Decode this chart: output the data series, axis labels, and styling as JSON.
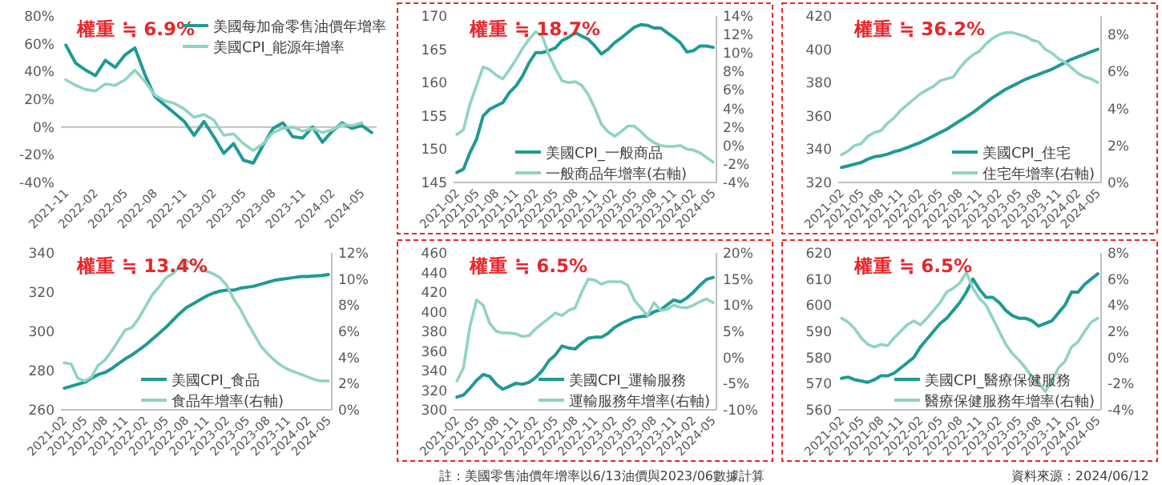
{
  "chart_data": [
    {
      "type": "line",
      "title": "權重 ≒ 6.9%",
      "legend": "top right",
      "categories": [
        "2021-11",
        null,
        null,
        "2022-02",
        null,
        null,
        "2022-05",
        null,
        null,
        "2022-08",
        null,
        null,
        "2022-11",
        null,
        null,
        "2023-02",
        null,
        null,
        "2023-05",
        null,
        null,
        "2023-08",
        null,
        null,
        "2023-11",
        null,
        null,
        "2024-02",
        null,
        null,
        "2024-05",
        null
      ],
      "ylim": [
        -40,
        80
      ],
      "yticks": [
        {
          "value": -40,
          "label": "-40%"
        },
        {
          "value": -20,
          "label": "-20%"
        },
        {
          "value": 0,
          "label": "0%"
        },
        {
          "value": 20,
          "label": "20%"
        },
        {
          "value": 40,
          "label": "40%"
        },
        {
          "value": 60,
          "label": "60%"
        },
        {
          "value": 80,
          "label": "80%"
        }
      ],
      "series": [
        {
          "name": "美國每加侖零售油價年增率",
          "color": "#1f9a93",
          "values": [
            59,
            46,
            41,
            37,
            48,
            43,
            52,
            57,
            38,
            22,
            16,
            10,
            4,
            -6,
            4,
            -7,
            -19,
            -12,
            -24,
            -26,
            -13,
            -1,
            3,
            -7,
            -8,
            0,
            -11,
            -3,
            3,
            -1,
            1,
            -4
          ]
        },
        {
          "name": "美國CPI_能源年增率",
          "color": "#8fd4c1",
          "values": [
            34,
            30,
            27,
            26,
            31,
            30,
            34,
            41,
            33,
            23,
            19,
            17,
            13,
            7,
            9,
            5,
            -6,
            -5,
            -12,
            -17,
            -12,
            -4,
            -1,
            0,
            -3,
            -1,
            -4,
            -2,
            2,
            1,
            3,
            null
          ]
        }
      ]
    },
    {
      "type": "line",
      "title": "權重 ≒ 18.7%",
      "legend": "bottom",
      "categories": [
        "2021-02",
        null,
        null,
        "2021-05",
        null,
        null,
        "2021-08",
        null,
        null,
        "2021-11",
        null,
        null,
        "2022-02",
        null,
        null,
        "2022-05",
        null,
        null,
        "2022-08",
        null,
        null,
        "2022-11",
        null,
        null,
        "2023-02",
        null,
        null,
        "2023-05",
        null,
        null,
        "2023-08",
        null,
        null,
        "2023-11",
        null,
        null,
        "2024-02",
        null,
        null,
        "2024-05"
      ],
      "ylim": [
        145,
        170
      ],
      "yticks": [
        145,
        150,
        155,
        160,
        165,
        170
      ],
      "y2lim": [
        -4,
        14
      ],
      "y2ticks": [
        {
          "value": -4,
          "label": "-4%"
        },
        {
          "value": -2,
          "label": "-2%"
        },
        {
          "value": 0,
          "label": "0%"
        },
        {
          "value": 2,
          "label": "2%"
        },
        {
          "value": 4,
          "label": "4%"
        },
        {
          "value": 6,
          "label": "6%"
        },
        {
          "value": 8,
          "label": "8%"
        },
        {
          "value": 10,
          "label": "10%"
        },
        {
          "value": 12,
          "label": "12%"
        },
        {
          "value": 14,
          "label": "14%"
        }
      ],
      "series": [
        {
          "name": "美國CPI_一般商品",
          "color": "#1f9a93",
          "values": [
            146.5,
            147,
            149.5,
            151.5,
            155,
            156,
            156.5,
            157,
            158.5,
            159.5,
            161,
            163,
            164.5,
            164.5,
            164.8,
            165.2,
            166.3,
            166.8,
            167.5,
            167,
            166.5,
            165.5,
            164.3,
            165,
            166,
            166.7,
            167.5,
            168.3,
            168.7,
            168.6,
            168.2,
            168.2,
            167.5,
            166.8,
            166,
            164.6,
            164.8,
            165.5,
            165.5,
            165.3
          ]
        },
        {
          "name": "一般商品年增率(右軸)",
          "color": "#8fd4c1",
          "axis": "y2",
          "values": [
            1.2,
            1.7,
            4.5,
            6.5,
            8.5,
            8.2,
            7.6,
            7.2,
            8.2,
            9.3,
            10.5,
            11.5,
            12.3,
            11.8,
            9.8,
            8.3,
            7,
            6.8,
            6.9,
            6.5,
            5.5,
            4,
            2.3,
            1.5,
            1,
            1.5,
            2.1,
            2.1,
            1.5,
            0.8,
            0.3,
            0,
            -0.1,
            -0.1,
            0,
            -0.4,
            -0.5,
            -0.8,
            -1.3,
            -1.8
          ]
        }
      ]
    },
    {
      "type": "line",
      "title": "權重 ≒ 36.2%",
      "legend": "bottom right",
      "categories": [
        "2021-02",
        null,
        null,
        "2021-05",
        null,
        null,
        "2021-08",
        null,
        null,
        "2021-11",
        null,
        null,
        "2022-02",
        null,
        null,
        "2022-05",
        null,
        null,
        "2022-08",
        null,
        null,
        "2022-11",
        null,
        null,
        "2023-02",
        null,
        null,
        "2023-05",
        null,
        null,
        "2023-08",
        null,
        null,
        "2023-11",
        null,
        null,
        "2024-02",
        null,
        null,
        "2024-05"
      ],
      "ylim": [
        320,
        420
      ],
      "yticks": [
        320,
        340,
        360,
        380,
        400,
        420
      ],
      "y2lim": [
        0,
        9
      ],
      "y2ticks": [
        {
          "value": 0,
          "label": "0%"
        },
        {
          "value": 2,
          "label": "2%"
        },
        {
          "value": 4,
          "label": "4%"
        },
        {
          "value": 6,
          "label": "6%"
        },
        {
          "value": 8,
          "label": "8%"
        }
      ],
      "series": [
        {
          "name": "美國CPI_住宅",
          "color": "#1f9a93",
          "values": [
            329,
            330,
            331,
            332,
            334,
            335.5,
            336,
            337,
            338.5,
            339.5,
            341,
            342.5,
            344,
            346,
            348,
            350,
            352,
            354.5,
            357,
            359.5,
            362,
            365,
            368,
            371,
            373.5,
            376,
            378,
            380,
            382,
            383.5,
            385,
            386.5,
            388,
            390,
            392,
            394,
            395.5,
            397,
            398.5,
            400
          ]
        },
        {
          "name": "住宅年增率(右軸)",
          "color": "#8fd4c1",
          "axis": "y2",
          "values": [
            1.5,
            1.7,
            2,
            2.1,
            2.5,
            2.7,
            2.8,
            3.2,
            3.5,
            3.9,
            4.2,
            4.5,
            4.8,
            5,
            5.2,
            5.5,
            5.6,
            5.7,
            6.2,
            6.6,
            6.9,
            7.1,
            7.5,
            7.8,
            8,
            8.1,
            8.1,
            8,
            7.9,
            7.7,
            7.6,
            7.2,
            7,
            6.7,
            6.5,
            6.2,
            5.9,
            5.7,
            5.6,
            5.4
          ]
        }
      ]
    },
    {
      "type": "line",
      "title": "權重 ≒ 13.4%",
      "legend": "bottom",
      "categories": [
        "2021-02",
        null,
        null,
        "2021-05",
        null,
        null,
        "2021-08",
        null,
        null,
        "2021-11",
        null,
        null,
        "2022-02",
        null,
        null,
        "2022-05",
        null,
        null,
        "2022-08",
        null,
        null,
        "2022-11",
        null,
        null,
        "2023-02",
        null,
        null,
        "2023-05",
        null,
        null,
        "2023-08",
        null,
        null,
        "2023-11",
        null,
        null,
        "2024-02",
        null,
        null,
        "2024-05"
      ],
      "ylim": [
        260,
        340
      ],
      "yticks": [
        260,
        280,
        300,
        320,
        340
      ],
      "y2lim": [
        0,
        12
      ],
      "y2ticks": [
        {
          "value": 0,
          "label": "0%"
        },
        {
          "value": 2,
          "label": "2%"
        },
        {
          "value": 4,
          "label": "4%"
        },
        {
          "value": 6,
          "label": "6%"
        },
        {
          "value": 8,
          "label": "8%"
        },
        {
          "value": 10,
          "label": "10%"
        },
        {
          "value": 12,
          "label": "12%"
        }
      ],
      "series": [
        {
          "name": "美國CPI_食品",
          "color": "#1f9a93",
          "values": [
            271,
            272,
            273,
            274,
            276,
            278,
            279,
            281,
            283.5,
            286,
            288,
            290.5,
            293,
            296,
            299,
            302,
            305.5,
            309,
            312,
            314,
            316,
            318,
            319.5,
            320.5,
            321,
            321,
            322,
            322.5,
            323,
            324,
            325,
            326,
            326.5,
            327,
            327.5,
            328,
            328,
            328.3,
            328.5,
            329
          ]
        },
        {
          "name": "食品年增率(右軸)",
          "color": "#8fd4c1",
          "axis": "y2",
          "values": [
            3.6,
            3.5,
            2.4,
            2.2,
            2.5,
            3.4,
            3.8,
            4.5,
            5.3,
            6.1,
            6.3,
            7,
            7.9,
            8.8,
            9.4,
            10.1,
            10.4,
            10.9,
            11.4,
            11.2,
            10.9,
            10.6,
            10.4,
            10.1,
            9.5,
            8.5,
            7.7,
            6.7,
            5.8,
            4.9,
            4.3,
            3.8,
            3.4,
            3.1,
            2.9,
            2.7,
            2.5,
            2.3,
            2.2,
            2.2
          ]
        }
      ]
    },
    {
      "type": "line",
      "title": "權重 ≒ 6.5%",
      "legend": "bottom right",
      "annotations": [
        "註：美國零售油價年增率以6/13油價與2023/06數據計算"
      ],
      "categories": [
        "2021-02",
        null,
        null,
        "2021-05",
        null,
        null,
        "2021-08",
        null,
        null,
        "2021-11",
        null,
        null,
        "2022-02",
        null,
        null,
        "2022-05",
        null,
        null,
        "2022-08",
        null,
        null,
        "2022-11",
        null,
        null,
        "2023-02",
        null,
        null,
        "2023-05",
        null,
        null,
        "2023-08",
        null,
        null,
        "2023-11",
        null,
        null,
        "2024-02",
        null,
        null,
        "2024-05"
      ],
      "ylim": [
        300,
        460
      ],
      "yticks": [
        300,
        320,
        340,
        360,
        380,
        400,
        420,
        440,
        460
      ],
      "y2lim": [
        -10,
        20
      ],
      "y2ticks": [
        {
          "value": -10,
          "label": "-10%"
        },
        {
          "value": -5,
          "label": "-5%"
        },
        {
          "value": 0,
          "label": "0%"
        },
        {
          "value": 5,
          "label": "5%"
        },
        {
          "value": 10,
          "label": "10%"
        },
        {
          "value": 15,
          "label": "15%"
        },
        {
          "value": 20,
          "label": "20%"
        }
      ],
      "series": [
        {
          "name": "美國CPI_運輸服務",
          "color": "#1f9a93",
          "values": [
            313,
            315,
            322,
            330,
            336,
            334,
            326,
            321,
            324,
            327,
            326,
            328,
            333,
            340,
            350,
            356,
            365,
            363,
            362,
            368,
            373,
            374,
            374,
            378,
            384,
            388,
            391,
            394,
            395,
            396,
            400,
            402,
            407,
            412,
            410,
            414,
            420,
            427,
            433,
            435
          ]
        },
        {
          "name": "運輸服務年增率(右軸)",
          "color": "#8fd4c1",
          "axis": "y2",
          "values": [
            -4.5,
            -2,
            6,
            11,
            10,
            6.5,
            5,
            4.7,
            4.7,
            4.5,
            4,
            4.2,
            5.5,
            6.5,
            7.5,
            8.5,
            8,
            9,
            9.5,
            12.5,
            15,
            14.8,
            14,
            14.5,
            14.5,
            14.5,
            13.8,
            11,
            9.5,
            8,
            10.5,
            9,
            9.2,
            10,
            9.6,
            9.5,
            10,
            10.7,
            11.2,
            10.5
          ]
        }
      ]
    },
    {
      "type": "line",
      "title": "權重 ≒ 6.5%",
      "legend": "bottom right",
      "annotations": [
        "資料來源：2024/06/12"
      ],
      "categories": [
        "2021-02",
        null,
        null,
        "2021-05",
        null,
        null,
        "2021-08",
        null,
        null,
        "2021-11",
        null,
        null,
        "2022-02",
        null,
        null,
        "2022-05",
        null,
        null,
        "2022-08",
        null,
        null,
        "2022-11",
        null,
        null,
        "2023-02",
        null,
        null,
        "2023-05",
        null,
        null,
        "2023-08",
        null,
        null,
        "2023-11",
        null,
        null,
        "2024-02",
        null,
        null,
        "2024-05"
      ],
      "ylim": [
        560,
        620
      ],
      "yticks": [
        560,
        570,
        580,
        590,
        600,
        610,
        620
      ],
      "y2lim": [
        -4,
        8
      ],
      "y2ticks": [
        {
          "value": -4,
          "label": "-4%"
        },
        {
          "value": -2,
          "label": "-2%"
        },
        {
          "value": 0,
          "label": "0%"
        },
        {
          "value": 2,
          "label": "2%"
        },
        {
          "value": 4,
          "label": "4%"
        },
        {
          "value": 6,
          "label": "6%"
        },
        {
          "value": 8,
          "label": "8%"
        }
      ],
      "series": [
        {
          "name": "美國CPI_醫療保健服務",
          "color": "#1f9a93",
          "values": [
            572,
            572.5,
            571.5,
            571,
            570.5,
            571.5,
            573,
            573,
            574,
            576,
            578,
            580,
            584,
            587,
            590,
            593,
            595,
            598,
            601,
            605,
            610,
            606,
            603,
            603,
            601,
            598,
            596,
            595,
            595,
            594,
            592,
            593,
            594,
            597,
            600,
            605,
            605,
            608,
            610,
            612
          ]
        },
        {
          "name": "醫療保健服務年增率(右軸)",
          "color": "#8fd4c1",
          "axis": "y2",
          "values": [
            3,
            2.7,
            2.2,
            1.5,
            1,
            0.8,
            1,
            0.9,
            1.5,
            2,
            2.5,
            2.8,
            2.5,
            3,
            3.6,
            4.2,
            5,
            5.3,
            5.7,
            6.5,
            5.3,
            4.5,
            4,
            3,
            2,
            1,
            0.3,
            -0.2,
            -0.8,
            -1.5,
            -2,
            -2.6,
            -1.8,
            -0.8,
            -0.3,
            0.8,
            1.2,
            2,
            2.7,
            3
          ]
        }
      ]
    }
  ]
}
